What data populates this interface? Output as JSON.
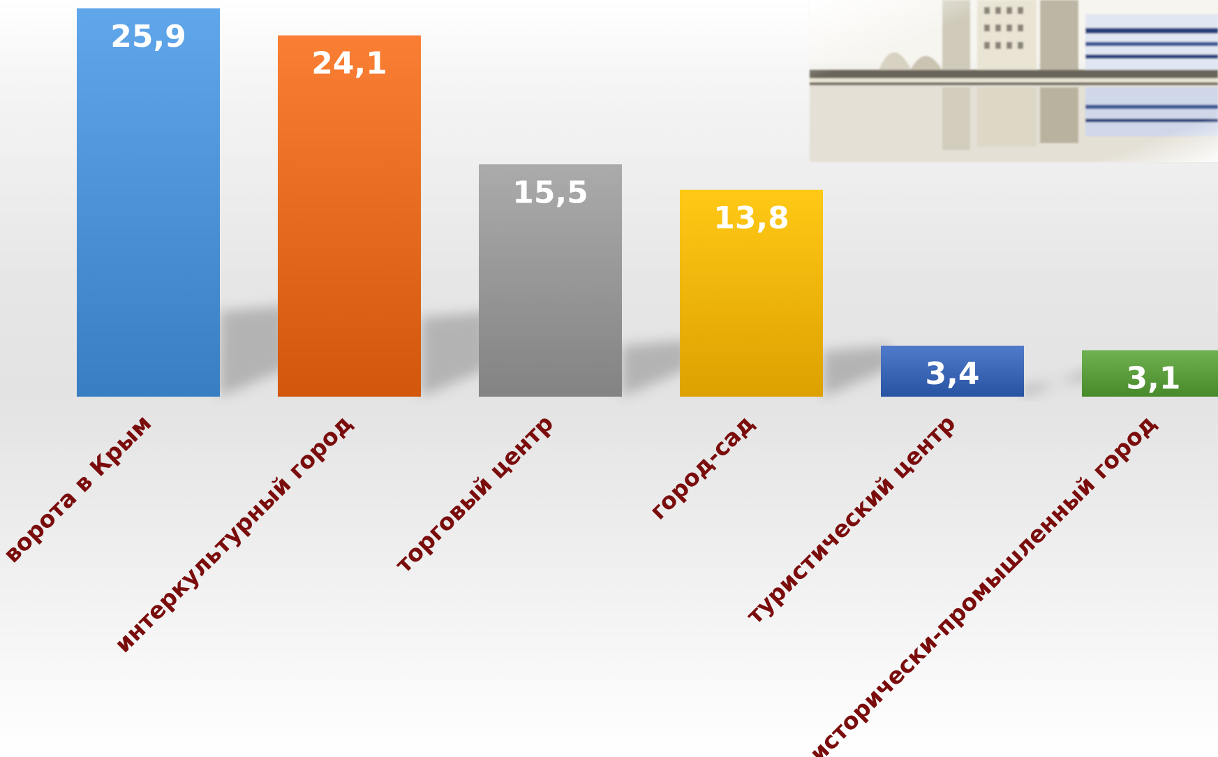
{
  "chart_data": {
    "type": "bar",
    "categories": [
      "ворота в Крым",
      "интеркультурный город",
      "торговый центр",
      "город-сад",
      "туристический центр",
      "исторически-промышленный город"
    ],
    "values": [
      25.9,
      24.1,
      15.5,
      13.8,
      3.4,
      3.1
    ],
    "value_labels": [
      "25,9",
      "24,1",
      "15,5",
      "13,8",
      "3,4",
      "3,1"
    ],
    "colors": [
      "#4a90d4",
      "#e4691e",
      "#959595",
      "#efb300",
      "#3a64b4",
      "#5a9c3c"
    ],
    "ylim": [
      0,
      25.9
    ],
    "grid": false,
    "legend": "none",
    "label_color": "#7a0c0c"
  },
  "decoration": {
    "photo": "city-waterfront-photo"
  }
}
